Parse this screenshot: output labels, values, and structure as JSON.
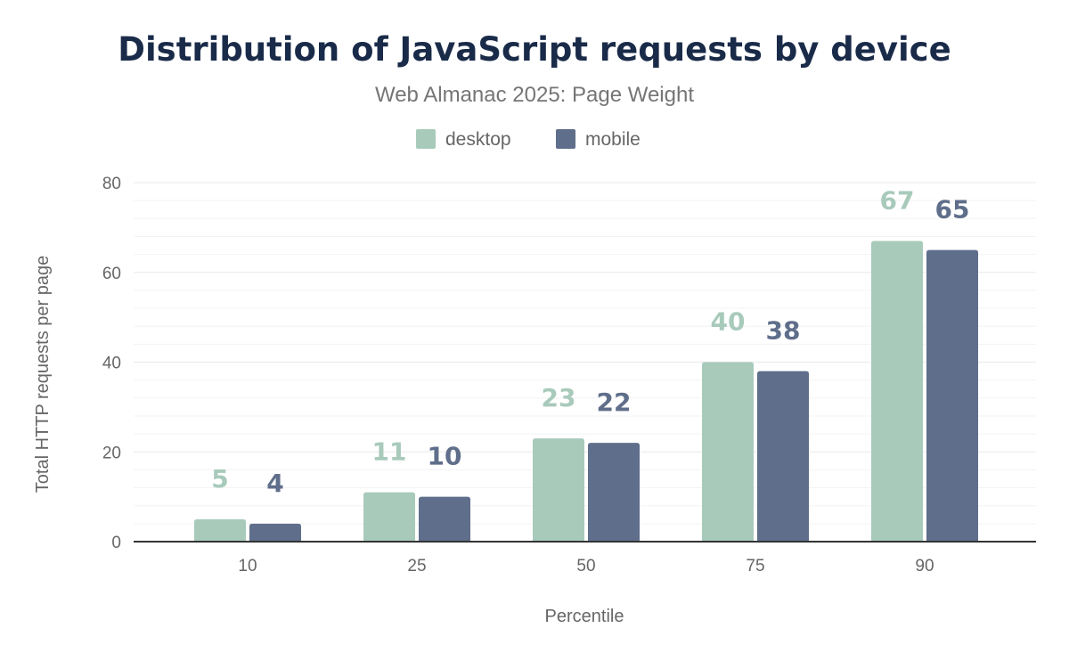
{
  "chart_data": {
    "type": "bar",
    "title": "Distribution of JavaScript requests by device",
    "subtitle": "Web Almanac 2025: Page Weight",
    "xlabel": "Percentile",
    "ylabel": "Total HTTP requests per page",
    "categories": [
      "10",
      "25",
      "50",
      "75",
      "90"
    ],
    "series": [
      {
        "name": "desktop",
        "color": "#a8cabb",
        "values": [
          5,
          11,
          23,
          40,
          67
        ]
      },
      {
        "name": "mobile",
        "color": "#5f6e8a",
        "values": [
          4,
          10,
          22,
          38,
          65
        ]
      }
    ],
    "ylim": [
      0,
      80
    ],
    "yticks": [
      0,
      20,
      40,
      60,
      80
    ],
    "grid": true,
    "legend_position": "top"
  }
}
